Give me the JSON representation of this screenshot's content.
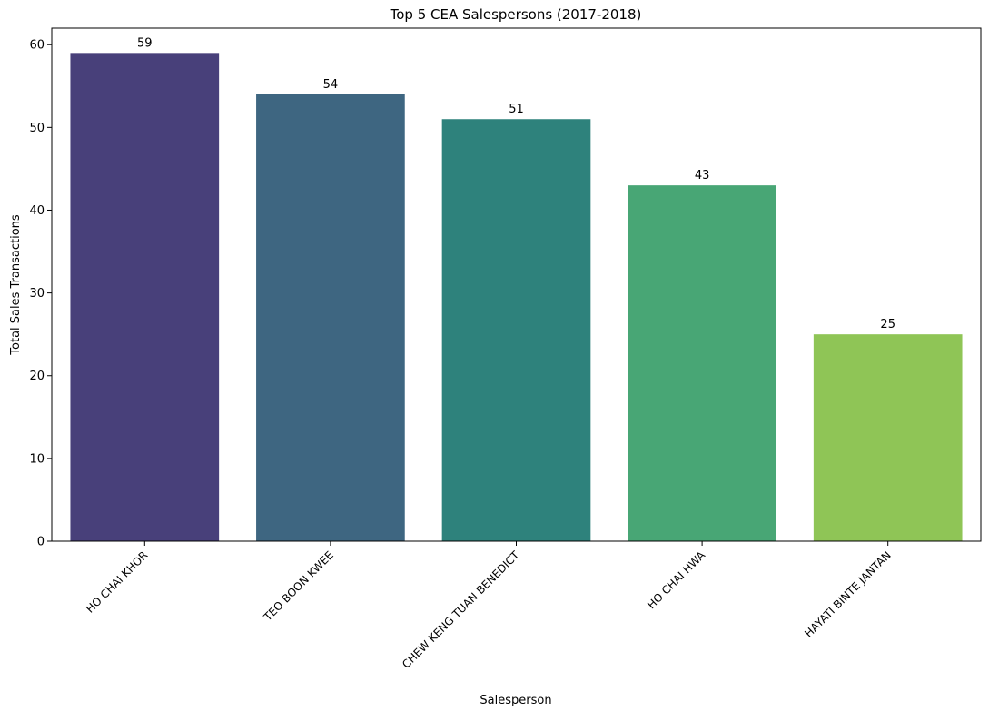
{
  "chart_data": {
    "type": "bar",
    "title": "Top 5 CEA Salespersons (2017-2018)",
    "xlabel": "Salesperson",
    "ylabel": "Total Sales Transactions",
    "categories": [
      "HO CHAI KHOR",
      "TEO BOON KWEE",
      "CHEW KENG TUAN BENEDICT",
      "HO CHAI HWA",
      "HAYATI BINTE JANTAN"
    ],
    "values": [
      59,
      54,
      51,
      43,
      25
    ],
    "data_labels": [
      "59",
      "54",
      "51",
      "43",
      "25"
    ],
    "colors": [
      "#48407a",
      "#3e6681",
      "#2e827c",
      "#48a675",
      "#8fc556"
    ],
    "ylim": [
      0,
      62
    ],
    "yticks": [
      0,
      10,
      20,
      30,
      40,
      50,
      60
    ],
    "ytick_labels": [
      "0",
      "10",
      "20",
      "30",
      "40",
      "50",
      "60"
    ],
    "grid": false,
    "legend": "none"
  }
}
